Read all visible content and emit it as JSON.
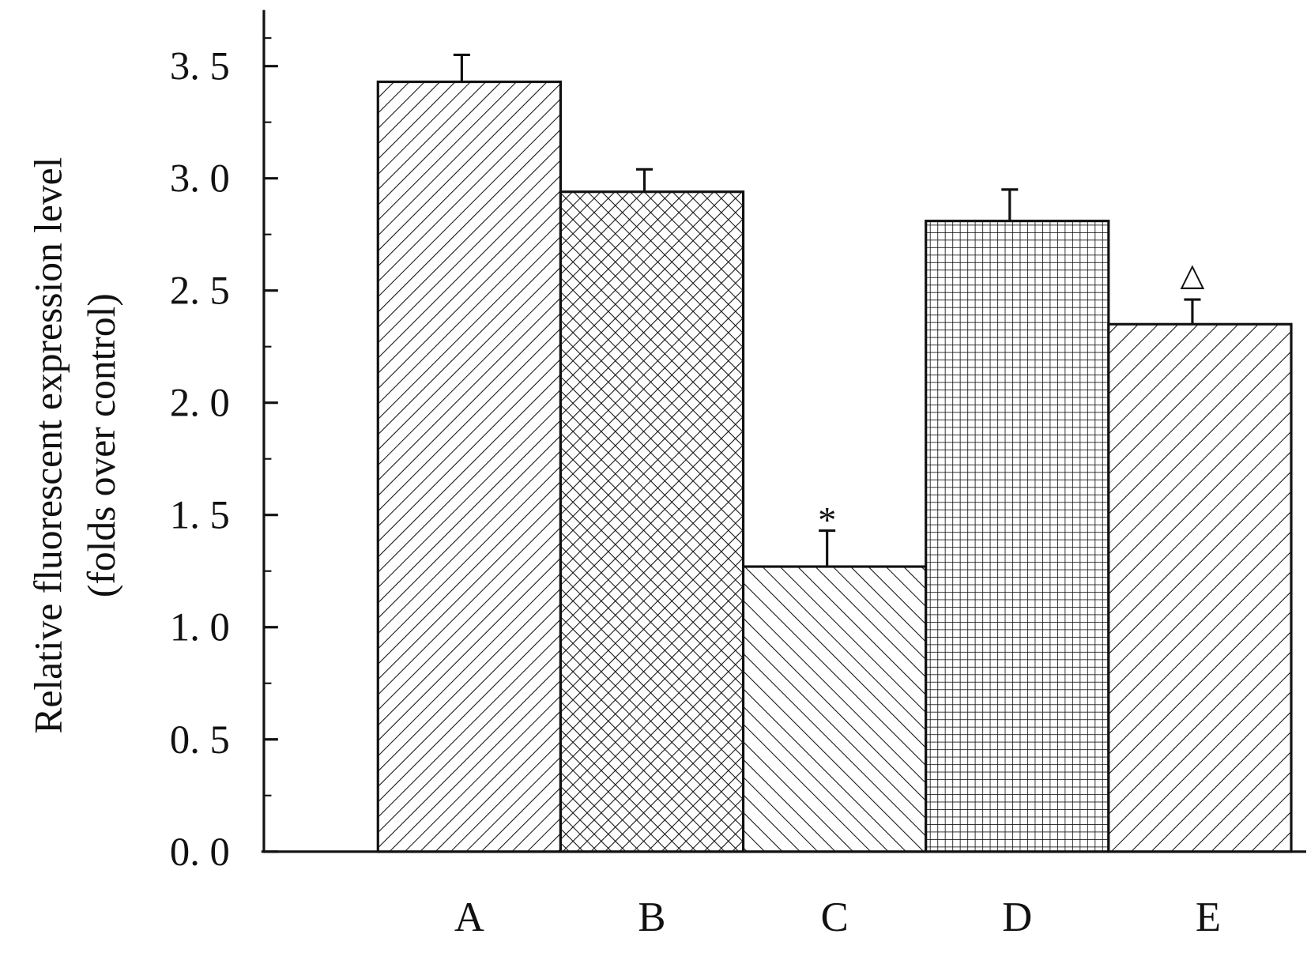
{
  "chart_data": {
    "type": "bar",
    "ylabel": [
      "Relative fluorescent expression level",
      "(folds over control)"
    ],
    "categories": [
      "A",
      "B",
      "C",
      "D",
      "E"
    ],
    "values": [
      3.43,
      2.94,
      1.27,
      2.81,
      2.35
    ],
    "errors": [
      0.12,
      0.1,
      0.16,
      0.14,
      0.11
    ],
    "hatches": [
      "/",
      "x",
      "\\",
      "+",
      "/"
    ],
    "color": "#111111",
    "annotations": [
      {
        "text": "*",
        "category": "C"
      },
      {
        "text": "△",
        "category": "E"
      }
    ],
    "ylim": [
      0,
      3.75
    ],
    "yticks": [
      {
        "value": 0,
        "label": "0. 0"
      },
      {
        "value": 0.5,
        "label": "0. 5"
      },
      {
        "value": 1,
        "label": "1. 0"
      },
      {
        "value": 1.5,
        "label": "1. 5"
      },
      {
        "value": 2,
        "label": "2. 0"
      },
      {
        "value": 2.5,
        "label": "2. 5"
      },
      {
        "value": 3,
        "label": "3. 0"
      },
      {
        "value": 3.5,
        "label": "3. 5"
      }
    ]
  }
}
